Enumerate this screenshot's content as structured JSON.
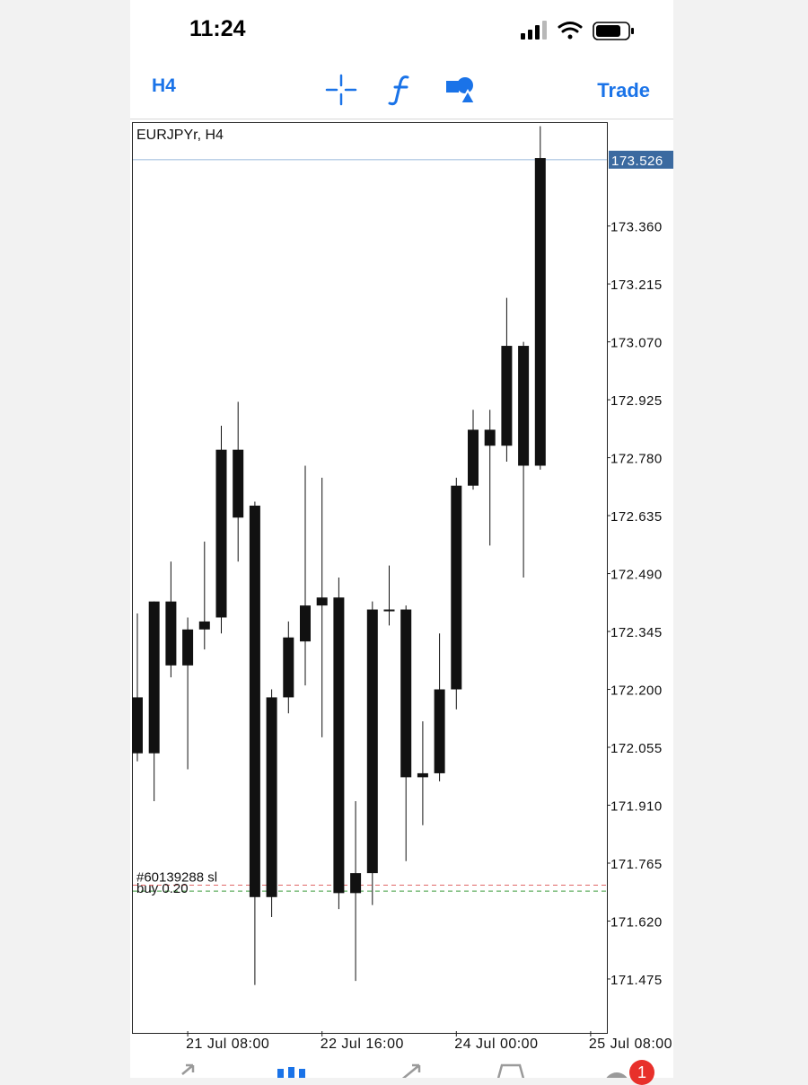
{
  "status_bar": {
    "time": "11:24"
  },
  "toolbar": {
    "timeframe": "H4",
    "trade_label": "Trade",
    "accent_color": "#1a73e8"
  },
  "chart": {
    "symbol_label": "EURJPYr, H4"
  },
  "chart_data": {
    "type": "candlestick",
    "title": "EURJPYr, H4",
    "symbol": "EURJPYr",
    "timeframe": "H4",
    "current_price": "173.526",
    "y_ticks": [
      "173.360",
      "173.215",
      "173.070",
      "172.925",
      "172.780",
      "172.635",
      "172.490",
      "172.345",
      "172.200",
      "172.055",
      "171.910",
      "171.765",
      "171.620",
      "171.475"
    ],
    "ylim": [
      171.34,
      173.62
    ],
    "x_ticks": [
      {
        "index": 3,
        "label": "21 Jul 08:00"
      },
      {
        "index": 11,
        "label": "22 Jul 16:00"
      },
      {
        "index": 19,
        "label": "24 Jul 00:00"
      },
      {
        "index": 27,
        "label": "25 Jul 08:00"
      }
    ],
    "candles": [
      {
        "o": 172.04,
        "h": 172.39,
        "l": 172.02,
        "c": 172.18
      },
      {
        "o": 172.04,
        "h": 172.42,
        "l": 171.92,
        "c": 172.42
      },
      {
        "o": 172.42,
        "h": 172.52,
        "l": 172.23,
        "c": 172.26
      },
      {
        "o": 172.26,
        "h": 172.38,
        "l": 172.0,
        "c": 172.35
      },
      {
        "o": 172.35,
        "h": 172.57,
        "l": 172.3,
        "c": 172.37
      },
      {
        "o": 172.8,
        "h": 172.86,
        "l": 172.34,
        "c": 172.38
      },
      {
        "o": 172.8,
        "h": 172.92,
        "l": 172.52,
        "c": 172.63
      },
      {
        "o": 172.66,
        "h": 172.67,
        "l": 171.46,
        "c": 171.68
      },
      {
        "o": 171.68,
        "h": 172.2,
        "l": 171.63,
        "c": 172.18
      },
      {
        "o": 172.18,
        "h": 172.37,
        "l": 172.14,
        "c": 172.33
      },
      {
        "o": 172.32,
        "h": 172.76,
        "l": 172.21,
        "c": 172.41
      },
      {
        "o": 172.41,
        "h": 172.73,
        "l": 172.08,
        "c": 172.43
      },
      {
        "o": 172.43,
        "h": 172.48,
        "l": 171.65,
        "c": 171.69
      },
      {
        "o": 171.69,
        "h": 171.92,
        "l": 171.47,
        "c": 171.74
      },
      {
        "o": 171.74,
        "h": 172.42,
        "l": 171.66,
        "c": 172.4
      },
      {
        "o": 172.4,
        "h": 172.51,
        "l": 172.36,
        "c": 172.4
      },
      {
        "o": 172.4,
        "h": 172.41,
        "l": 171.77,
        "c": 171.98
      },
      {
        "o": 171.98,
        "h": 172.12,
        "l": 171.86,
        "c": 171.99
      },
      {
        "o": 171.99,
        "h": 172.34,
        "l": 171.97,
        "c": 172.2
      },
      {
        "o": 172.2,
        "h": 172.73,
        "l": 172.15,
        "c": 172.71
      },
      {
        "o": 172.71,
        "h": 172.9,
        "l": 172.7,
        "c": 172.85
      },
      {
        "o": 172.81,
        "h": 172.9,
        "l": 172.56,
        "c": 172.85
      },
      {
        "o": 172.81,
        "h": 173.18,
        "l": 172.77,
        "c": 173.06
      },
      {
        "o": 173.06,
        "h": 173.07,
        "l": 172.48,
        "c": 172.76
      },
      {
        "o": 172.76,
        "h": 173.61,
        "l": 172.75,
        "c": 173.53
      }
    ],
    "order_lines": [
      {
        "label": "#60139288 sl",
        "price": 171.71,
        "color": "#e06666"
      },
      {
        "label": "buy 0.20",
        "price": 171.695,
        "color": "#3a9a3a"
      }
    ],
    "colors": {
      "candle": "#111111",
      "current_price_line": "#a9c4e0",
      "current_price_tag": "#3b6aa0"
    }
  },
  "nav_badge": "1"
}
